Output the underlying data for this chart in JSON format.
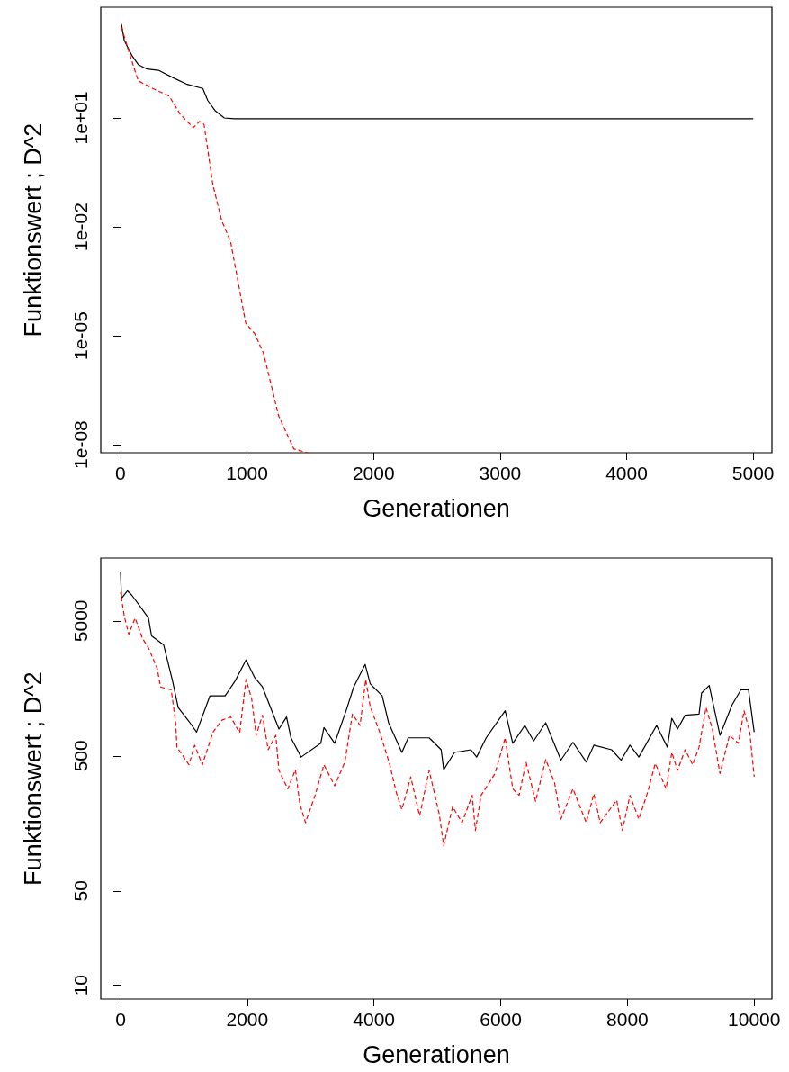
{
  "chart_data": [
    {
      "type": "line",
      "xlabel": "Generationen",
      "ylabel": "Funktionswert ; D^2",
      "log": "y",
      "grid": false,
      "xlim": [
        -156,
        5148
      ],
      "ylim": [
        6e-09,
        11200
      ],
      "xticks": [
        0,
        1000,
        2000,
        3000,
        4000,
        5000
      ],
      "yticks": [
        {
          "value": 10,
          "label": "1e+01"
        },
        {
          "value": 0.01,
          "label": "1e-02"
        },
        {
          "value": 1e-05,
          "label": "1e-05"
        },
        {
          "value": 1e-08,
          "label": "1e-08"
        }
      ],
      "series": [
        {
          "color": "#000000",
          "line_style": "solid",
          "x": [
            7,
            30,
            90,
            140,
            210,
            300,
            420,
            520,
            650,
            690,
            750,
            820,
            900,
            1500,
            3000,
            5000
          ],
          "values": [
            3900,
            1350,
            525,
            295,
            222,
            205,
            126,
            86,
            65,
            30,
            15.5,
            10,
            9.5,
            9.5,
            9.5,
            9.5
          ]
        },
        {
          "color": "#ff0000",
          "line_style": "dashed",
          "x": [
            7,
            65,
            140,
            255,
            385,
            470,
            575,
            625,
            660,
            730,
            800,
            870,
            990,
            1060,
            1130,
            1250,
            1370,
            1480
          ],
          "values": [
            3200,
            690,
            105,
            65,
            40,
            12.8,
            5.4,
            8,
            6.6,
            0.145,
            0.0148,
            0.0039,
            2.2e-05,
            1.15e-05,
            3.3e-06,
            6.2e-08,
            7.6e-09,
            6e-09
          ]
        }
      ]
    },
    {
      "type": "line",
      "xlabel": "Generationen",
      "ylabel": "Funktionswert ; D^2",
      "log": "y",
      "grid": false,
      "xlim": [
        -312,
        10280
      ],
      "ylim": [
        7.9,
        14600
      ],
      "xticks": [
        0,
        2000,
        4000,
        6000,
        8000,
        10000
      ],
      "yticks": [
        10,
        50,
        500,
        5000
      ],
      "series": [
        {
          "color": "#000000",
          "line_style": "solid",
          "x": [
            0,
            15,
            110,
            180,
            300,
            440,
            490,
            680,
            820,
            910,
            1080,
            1200,
            1410,
            1650,
            1810,
            1980,
            2120,
            2240,
            2500,
            2620,
            2690,
            2850,
            3160,
            3210,
            3380,
            3560,
            3680,
            3860,
            3940,
            4130,
            4230,
            4440,
            4540,
            4870,
            5060,
            5100,
            5270,
            5530,
            5620,
            5770,
            6070,
            6190,
            6380,
            6520,
            6710,
            6950,
            7140,
            7350,
            7470,
            7750,
            7900,
            8040,
            8180,
            8460,
            8630,
            8700,
            8790,
            8910,
            9130,
            9170,
            9290,
            9460,
            9650,
            9790,
            9910,
            10000
          ],
          "values": [
            11600,
            7340,
            8340,
            7720,
            6490,
            5250,
            3870,
            3320,
            1800,
            1140,
            900,
            750,
            1390,
            1390,
            1800,
            2570,
            1890,
            1620,
            790,
            970,
            680,
            490,
            620,
            810,
            620,
            1080,
            1620,
            2380,
            1710,
            1390,
            880,
            530,
            680,
            680,
            555,
            395,
            530,
            555,
            490,
            680,
            1080,
            620,
            840,
            645,
            880,
            465,
            630,
            450,
            600,
            555,
            465,
            600,
            490,
            840,
            580,
            950,
            790,
            1000,
            1020,
            1460,
            1660,
            710,
            1190,
            1540,
            1540,
            750
          ]
        },
        {
          "color": "#ff0000",
          "line_style": "dashed",
          "x": [
            0,
            60,
            130,
            230,
            350,
            440,
            580,
            630,
            800,
            870,
            890,
            1080,
            1170,
            1290,
            1460,
            1600,
            1740,
            1880,
            1980,
            2070,
            2140,
            2240,
            2330,
            2450,
            2500,
            2640,
            2760,
            2830,
            2920,
            3070,
            3210,
            3380,
            3540,
            3660,
            3780,
            3870,
            3940,
            4090,
            4250,
            4350,
            4440,
            4580,
            4720,
            4870,
            5030,
            5100,
            5240,
            5390,
            5550,
            5600,
            5690,
            5910,
            6070,
            6190,
            6290,
            6400,
            6550,
            6710,
            6850,
            6950,
            7140,
            7350,
            7470,
            7570,
            7830,
            7920,
            8040,
            8180,
            8320,
            8440,
            8610,
            8700,
            8790,
            8910,
            9030,
            9130,
            9240,
            9340,
            9460,
            9610,
            9750,
            9840,
            9930,
            10000
          ],
          "values": [
            8120,
            5400,
            3970,
            5250,
            3680,
            3160,
            2210,
            1620,
            1540,
            880,
            580,
            430,
            600,
            430,
            750,
            920,
            970,
            740,
            1840,
            1320,
            710,
            1000,
            555,
            710,
            390,
            285,
            395,
            220,
            160,
            255,
            430,
            300,
            450,
            1020,
            840,
            1840,
            1160,
            750,
            430,
            270,
            200,
            350,
            180,
            390,
            185,
            108,
            210,
            160,
            255,
            140,
            255,
            370,
            680,
            285,
            255,
            450,
            230,
            470,
            315,
            170,
            285,
            160,
            262,
            160,
            235,
            140,
            255,
            170,
            270,
            440,
            285,
            530,
            390,
            555,
            430,
            580,
            1140,
            790,
            370,
            710,
            620,
            1080,
            750,
            350
          ]
        }
      ]
    }
  ]
}
